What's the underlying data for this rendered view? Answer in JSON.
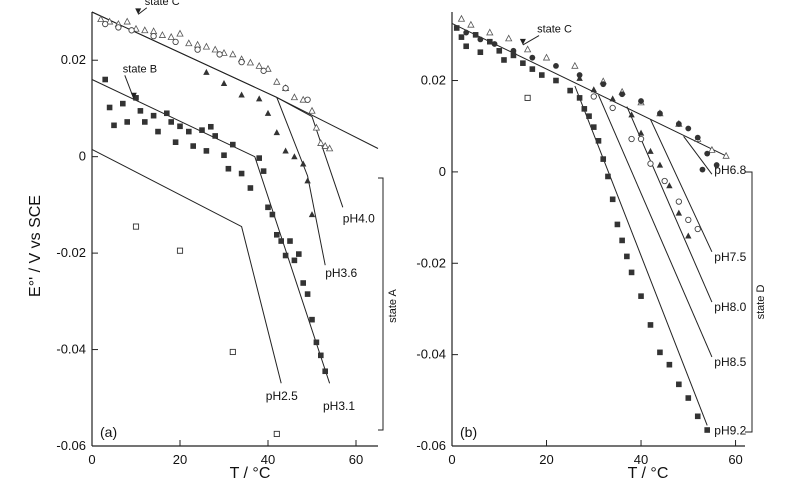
{
  "chart_data": [
    {
      "type": "scatter",
      "panel_label": "(a)",
      "xlabel": "T / °C",
      "ylabel": "E°' / V   vs  SCE",
      "xlim": [
        0,
        65
      ],
      "ylim": [
        -0.06,
        0.03
      ],
      "xticks": [
        0,
        20,
        40,
        60
      ],
      "yticks": [
        0.02,
        0,
        -0.02,
        -0.04,
        -0.06
      ],
      "ytick_labels": [
        "0.02",
        "0",
        "-0.02",
        "-0.04",
        "-0.06"
      ],
      "annotations": [
        {
          "text": "state C",
          "x": 12,
          "y": 0.0315,
          "arrow_to": [
            10.5,
            0.0295
          ]
        },
        {
          "text": "state B",
          "x": 7,
          "y": 0.0175,
          "arrow_to": [
            9.5,
            0.012
          ]
        }
      ],
      "side_bracket_label": "state A",
      "fit_lines": [
        {
          "name": "pH4.0",
          "label_x": 57,
          "label_y": -0.0137,
          "points": [
            [
              0,
              0.03
            ],
            [
              42,
              0.0123
            ],
            [
              50,
              0.0083
            ],
            [
              57,
              -0.0105
            ]
          ]
        },
        {
          "name": "pH3.6",
          "label_x": 53,
          "label_y": -0.025,
          "points": [
            [
              0,
              0.03
            ],
            [
              42,
              0.0123
            ],
            [
              49,
              -0.004
            ],
            [
              53,
              -0.0225
            ]
          ]
        },
        {
          "name": "pH3.1",
          "label_x": 52.5,
          "label_y": -0.0525,
          "points": [
            [
              0,
              0.016
            ],
            [
              37,
              0.0
            ],
            [
              54,
              -0.047
            ]
          ]
        },
        {
          "name": "pH2.5",
          "label_x": 39.5,
          "label_y": -0.0505,
          "points": [
            [
              0,
              0.0015
            ],
            [
              34,
              -0.0145
            ],
            [
              43,
              -0.047
            ]
          ]
        },
        {
          "name": "",
          "label_x": null,
          "label_y": null,
          "points": [
            [
              42,
              0.0123
            ],
            [
              65,
              0.0017
            ]
          ]
        }
      ],
      "series": [
        {
          "marker": "open-triangle",
          "points": [
            [
              2,
              0.0285
            ],
            [
              4,
              0.028
            ],
            [
              6,
              0.0275
            ],
            [
              8,
              0.028
            ],
            [
              10,
              0.0265
            ],
            [
              12,
              0.0262
            ],
            [
              14,
              0.026
            ],
            [
              16,
              0.0252
            ],
            [
              18,
              0.0248
            ],
            [
              20,
              0.0255
            ],
            [
              22,
              0.0235
            ],
            [
              24,
              0.0232
            ],
            [
              26,
              0.0228
            ],
            [
              28,
              0.0222
            ],
            [
              30,
              0.0215
            ],
            [
              32,
              0.0212
            ],
            [
              34,
              0.0202
            ],
            [
              36,
              0.0195
            ],
            [
              38,
              0.0188
            ],
            [
              40,
              0.0182
            ],
            [
              42,
              0.0155
            ],
            [
              44,
              0.0142
            ],
            [
              46,
              0.0123
            ],
            [
              48,
              0.0118
            ],
            [
              50,
              0.0095
            ],
            [
              51,
              0.006
            ],
            [
              52,
              0.0028
            ],
            [
              53,
              0.0022
            ],
            [
              54,
              0.0017
            ]
          ]
        },
        {
          "marker": "open-circle",
          "points": [
            [
              3,
              0.0275
            ],
            [
              6,
              0.0268
            ],
            [
              9,
              0.0262
            ],
            [
              14,
              0.025
            ],
            [
              19,
              0.0238
            ],
            [
              24,
              0.0222
            ],
            [
              29,
              0.0212
            ],
            [
              34,
              0.0196
            ],
            [
              39,
              0.0178
            ],
            [
              44,
              0.0142
            ],
            [
              49,
              0.0118
            ]
          ]
        },
        {
          "marker": "filled-triangle",
          "points": [
            [
              26,
              0.0175
            ],
            [
              30,
              0.0152
            ],
            [
              34,
              0.0128
            ],
            [
              38,
              0.012
            ],
            [
              40,
              0.009
            ],
            [
              42,
              0.005
            ],
            [
              44,
              0.0012
            ],
            [
              46,
              0.0
            ],
            [
              48,
              -0.0015
            ],
            [
              49,
              -0.005
            ],
            [
              50,
              -0.012
            ]
          ]
        },
        {
          "marker": "filled-square",
          "points": [
            [
              3,
              0.016
            ],
            [
              4,
              0.0102
            ],
            [
              5,
              0.0065
            ],
            [
              7,
              0.011
            ],
            [
              8,
              0.0072
            ],
            [
              10,
              0.0122
            ],
            [
              11,
              0.0095
            ],
            [
              12,
              0.0072
            ],
            [
              14,
              0.0085
            ],
            [
              15,
              0.0052
            ],
            [
              17,
              0.009
            ],
            [
              18,
              0.0072
            ],
            [
              19,
              0.003
            ],
            [
              20,
              0.0063
            ],
            [
              22,
              0.0052
            ],
            [
              23,
              0.0022
            ],
            [
              25,
              0.0055
            ],
            [
              26,
              0.0012
            ],
            [
              27,
              0.0062
            ],
            [
              28,
              0.0043
            ],
            [
              30,
              0.0003
            ],
            [
              31,
              -0.0025
            ],
            [
              32,
              0.0025
            ],
            [
              34,
              -0.0035
            ],
            [
              36,
              -0.0065
            ],
            [
              38,
              -0.0003
            ],
            [
              39,
              -0.003
            ],
            [
              40,
              -0.0105
            ],
            [
              41,
              -0.012
            ],
            [
              42,
              -0.0162
            ],
            [
              43,
              -0.0175
            ],
            [
              44,
              -0.0205
            ],
            [
              45,
              -0.0175
            ],
            [
              46,
              -0.0215
            ],
            [
              47,
              -0.0202
            ],
            [
              48,
              -0.0262
            ],
            [
              49,
              -0.0285
            ],
            [
              50,
              -0.0338
            ],
            [
              51,
              -0.0385
            ],
            [
              52,
              -0.0412
            ],
            [
              53,
              -0.0445
            ]
          ]
        },
        {
          "marker": "open-square",
          "points": [
            [
              10,
              -0.0145
            ],
            [
              20,
              -0.0195
            ],
            [
              32,
              -0.0405
            ],
            [
              42,
              -0.0575
            ]
          ]
        }
      ]
    },
    {
      "type": "scatter",
      "panel_label": "(b)",
      "xlabel": "T / °C",
      "ylabel": "",
      "xlim": [
        0,
        62
      ],
      "ylim": [
        -0.06,
        0.035
      ],
      "xticks": [
        0,
        20,
        40,
        60
      ],
      "yticks": [
        0.02,
        0,
        -0.02,
        -0.04,
        -0.06
      ],
      "ytick_labels": [
        "0.02",
        "0",
        "-0.02",
        "-0.04",
        "-0.06"
      ],
      "annotations": [
        {
          "text": "state C",
          "x": 18,
          "y": 0.0305,
          "arrow_to": [
            15,
            0.0278
          ]
        }
      ],
      "side_bracket_label": "state D",
      "fit_lines": [
        {
          "name": "",
          "label_x": null,
          "label_y": null,
          "points": [
            [
              0,
              0.0325
            ],
            [
              58,
              0.0035
            ]
          ]
        },
        {
          "name": "pH6.8",
          "label_x": 55.5,
          "label_y": -0.0005,
          "points": [
            [
              49,
              0.0078
            ],
            [
              55,
              -0.0005
            ]
          ]
        },
        {
          "name": "pH7.5",
          "label_x": 55.5,
          "label_y": -0.0195,
          "points": [
            [
              42,
              0.0115
            ],
            [
              55,
              -0.0175
            ]
          ]
        },
        {
          "name": "pH8.0",
          "label_x": 55.5,
          "label_y": -0.0305,
          "points": [
            [
              37,
              0.0143
            ],
            [
              55,
              -0.0285
            ]
          ]
        },
        {
          "name": "pH8.5",
          "label_x": 55.5,
          "label_y": -0.0425,
          "points": [
            [
              31,
              0.0168
            ],
            [
              55,
              -0.0405
            ]
          ]
        },
        {
          "name": "pH9.2",
          "label_x": 55.5,
          "label_y": -0.0575,
          "points": [
            [
              26,
              0.0188
            ],
            [
              54,
              -0.0555
            ]
          ]
        }
      ],
      "series": [
        {
          "marker": "open-triangle",
          "points": [
            [
              2,
              0.0335
            ],
            [
              4,
              0.0322
            ],
            [
              8,
              0.0305
            ],
            [
              12,
              0.0292
            ],
            [
              16,
              0.0268
            ],
            [
              20,
              0.025
            ],
            [
              26,
              0.0232
            ],
            [
              32,
              0.0198
            ],
            [
              36,
              0.0175
            ],
            [
              40,
              0.0152
            ],
            [
              44,
              0.0128
            ],
            [
              48,
              0.0105
            ],
            [
              52,
              0.0072
            ],
            [
              55,
              0.0048
            ],
            [
              58,
              0.0035
            ]
          ]
        },
        {
          "marker": "filled-circle",
          "points": [
            [
              3,
              0.0305
            ],
            [
              6,
              0.029
            ],
            [
              9,
              0.028
            ],
            [
              13,
              0.0265
            ],
            [
              17,
              0.025
            ],
            [
              22,
              0.0232
            ],
            [
              27,
              0.0212
            ],
            [
              32,
              0.0192
            ],
            [
              36,
              0.017
            ],
            [
              40,
              0.0155
            ],
            [
              44,
              0.0128
            ],
            [
              48,
              0.0105
            ],
            [
              50,
              0.0095
            ],
            [
              52,
              0.0075
            ],
            [
              53,
              0.0005
            ],
            [
              54,
              0.004
            ],
            [
              56,
              0.0015
            ]
          ]
        },
        {
          "marker": "filled-triangle",
          "points": [
            [
              27,
              0.0205
            ],
            [
              30,
              0.018
            ],
            [
              34,
              0.016
            ],
            [
              38,
              0.0125
            ],
            [
              40,
              0.0085
            ],
            [
              42,
              0.0045
            ],
            [
              44,
              0.0015
            ],
            [
              46,
              -0.003
            ],
            [
              48,
              -0.009
            ],
            [
              50,
              -0.014
            ]
          ]
        },
        {
          "marker": "open-circle",
          "points": [
            [
              30,
              0.0165
            ],
            [
              34,
              0.014
            ],
            [
              38,
              0.0072
            ],
            [
              40,
              0.0072
            ],
            [
              42,
              0.0018
            ],
            [
              45,
              -0.002
            ],
            [
              48,
              -0.0065
            ],
            [
              50,
              -0.0105
            ],
            [
              52,
              -0.0125
            ]
          ]
        },
        {
          "marker": "filled-square",
          "points": [
            [
              1,
              0.0315
            ],
            [
              2,
              0.0295
            ],
            [
              3,
              0.0275
            ],
            [
              5,
              0.03
            ],
            [
              6,
              0.0262
            ],
            [
              8,
              0.0285
            ],
            [
              10,
              0.0265
            ],
            [
              11,
              0.0245
            ],
            [
              13,
              0.0255
            ],
            [
              15,
              0.0238
            ],
            [
              17,
              0.0225
            ],
            [
              19,
              0.0212
            ],
            [
              22,
              0.02
            ],
            [
              25,
              0.0178
            ],
            [
              27,
              0.0162
            ],
            [
              28,
              0.0138
            ],
            [
              29,
              0.0122
            ],
            [
              30,
              0.0098
            ],
            [
              31,
              0.0068
            ],
            [
              32,
              0.0028
            ],
            [
              33,
              -0.001
            ],
            [
              34,
              -0.006
            ],
            [
              35,
              -0.0115
            ],
            [
              36,
              -0.015
            ],
            [
              37,
              -0.0185
            ],
            [
              38,
              -0.022
            ],
            [
              40,
              -0.0272
            ],
            [
              42,
              -0.0335
            ],
            [
              44,
              -0.0395
            ],
            [
              46,
              -0.0422
            ],
            [
              48,
              -0.0465
            ],
            [
              50,
              -0.0495
            ],
            [
              52,
              -0.0535
            ],
            [
              54,
              -0.0565
            ]
          ]
        },
        {
          "marker": "open-square",
          "points": [
            [
              16,
              0.0162
            ]
          ]
        }
      ]
    }
  ]
}
